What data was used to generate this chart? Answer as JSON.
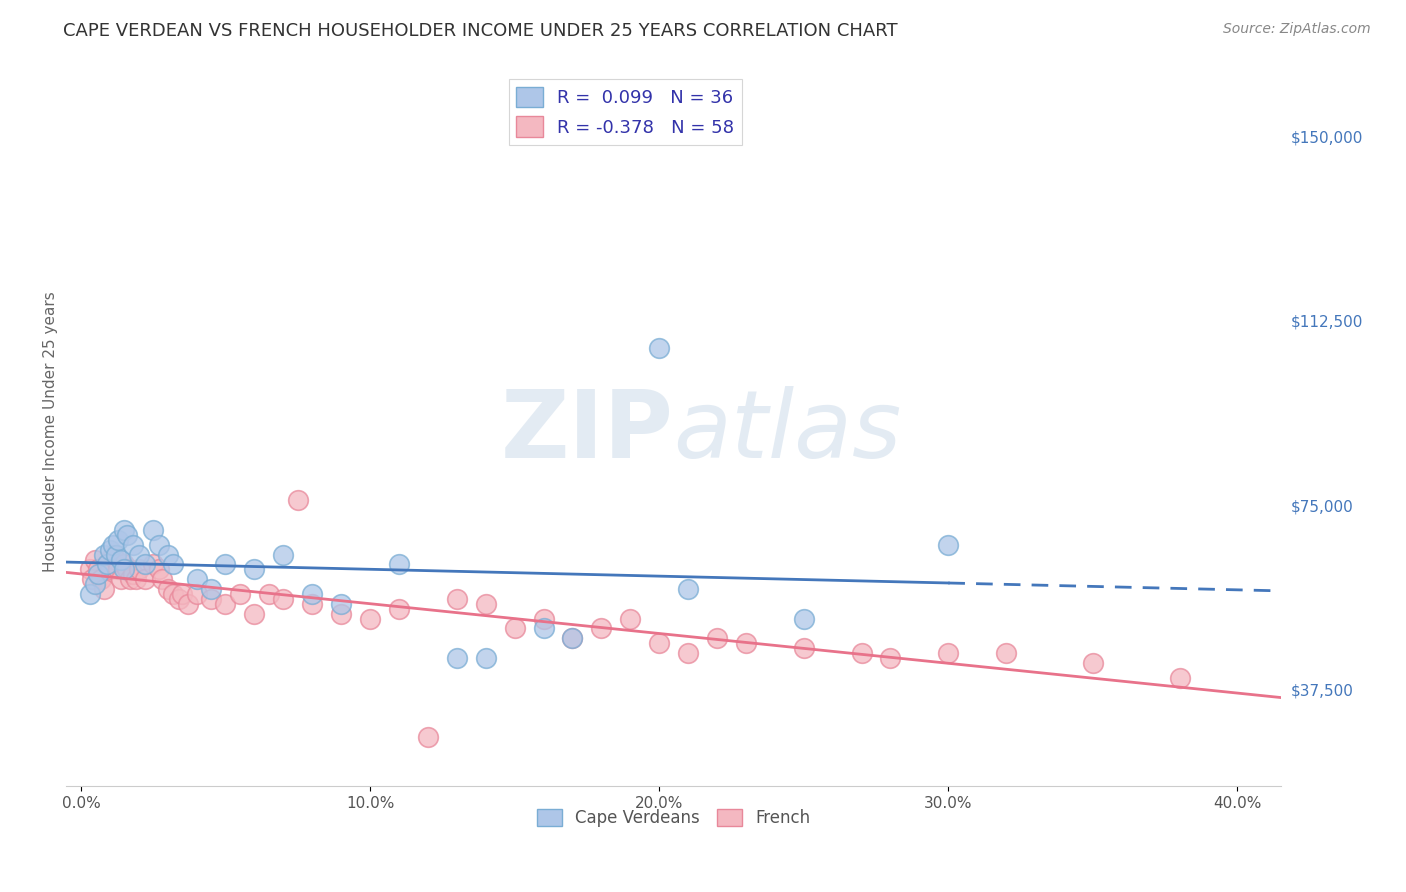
{
  "title": "CAPE VERDEAN VS FRENCH HOUSEHOLDER INCOME UNDER 25 YEARS CORRELATION CHART",
  "source": "Source: ZipAtlas.com",
  "ylabel": "Householder Income Under 25 years",
  "xlabel_ticks": [
    "0.0%",
    "10.0%",
    "20.0%",
    "30.0%",
    "40.0%"
  ],
  "xlabel_vals": [
    0.0,
    0.1,
    0.2,
    0.3,
    0.4
  ],
  "ylabel_ticks": [
    "$37,500",
    "$75,000",
    "$112,500",
    "$150,000"
  ],
  "ylabel_vals": [
    37500,
    75000,
    112500,
    150000
  ],
  "xlim": [
    -0.005,
    0.415
  ],
  "ylim": [
    18000,
    162000
  ],
  "blue_color": "#aec6e8",
  "blue_edge": "#7aadd4",
  "pink_color": "#f4b8c1",
  "pink_edge": "#e8889a",
  "blue_line_color": "#4477bb",
  "pink_line_color": "#e8728a",
  "legend_blue_r": "R =  0.099",
  "legend_blue_n": "N = 36",
  "legend_pink_r": "R = -0.378",
  "legend_pink_n": "N = 58",
  "label_blue": "Cape Verdeans",
  "label_pink": "French",
  "watermark": "ZIPatlas",
  "blue_x": [
    0.003,
    0.005,
    0.006,
    0.008,
    0.009,
    0.01,
    0.011,
    0.012,
    0.013,
    0.014,
    0.015,
    0.015,
    0.016,
    0.018,
    0.02,
    0.022,
    0.025,
    0.027,
    0.03,
    0.032,
    0.04,
    0.045,
    0.05,
    0.06,
    0.07,
    0.08,
    0.09,
    0.11,
    0.13,
    0.14,
    0.16,
    0.17,
    0.2,
    0.21,
    0.25,
    0.3
  ],
  "blue_y": [
    57000,
    59000,
    61000,
    65000,
    63000,
    66000,
    67000,
    65000,
    68000,
    64000,
    62000,
    70000,
    69000,
    67000,
    65000,
    63000,
    70000,
    67000,
    65000,
    63000,
    60000,
    58000,
    63000,
    62000,
    65000,
    57000,
    55000,
    63000,
    44000,
    44000,
    50000,
    48000,
    107000,
    58000,
    52000,
    67000
  ],
  "pink_x": [
    0.003,
    0.004,
    0.005,
    0.006,
    0.007,
    0.008,
    0.009,
    0.01,
    0.011,
    0.012,
    0.013,
    0.014,
    0.015,
    0.016,
    0.017,
    0.018,
    0.019,
    0.02,
    0.022,
    0.025,
    0.027,
    0.028,
    0.03,
    0.032,
    0.034,
    0.035,
    0.037,
    0.04,
    0.045,
    0.05,
    0.055,
    0.06,
    0.065,
    0.07,
    0.075,
    0.08,
    0.09,
    0.1,
    0.11,
    0.12,
    0.13,
    0.14,
    0.15,
    0.16,
    0.17,
    0.18,
    0.19,
    0.2,
    0.21,
    0.22,
    0.23,
    0.25,
    0.27,
    0.28,
    0.3,
    0.32,
    0.35,
    0.38
  ],
  "pink_y": [
    62000,
    60000,
    64000,
    62000,
    60000,
    58000,
    63000,
    62000,
    65000,
    64000,
    62000,
    60000,
    63000,
    62000,
    60000,
    61000,
    60000,
    62000,
    60000,
    63000,
    62000,
    60000,
    58000,
    57000,
    56000,
    57000,
    55000,
    57000,
    56000,
    55000,
    57000,
    53000,
    57000,
    56000,
    76000,
    55000,
    53000,
    52000,
    54000,
    28000,
    56000,
    55000,
    50000,
    52000,
    48000,
    50000,
    52000,
    47000,
    45000,
    48000,
    47000,
    46000,
    45000,
    44000,
    45000,
    45000,
    43000,
    40000
  ],
  "title_fontsize": 13,
  "source_fontsize": 10,
  "tick_fontsize": 11,
  "ylabel_fontsize": 11,
  "grid_color": "#cccccc",
  "background_color": "#ffffff",
  "right_tick_color": "#4477bb"
}
